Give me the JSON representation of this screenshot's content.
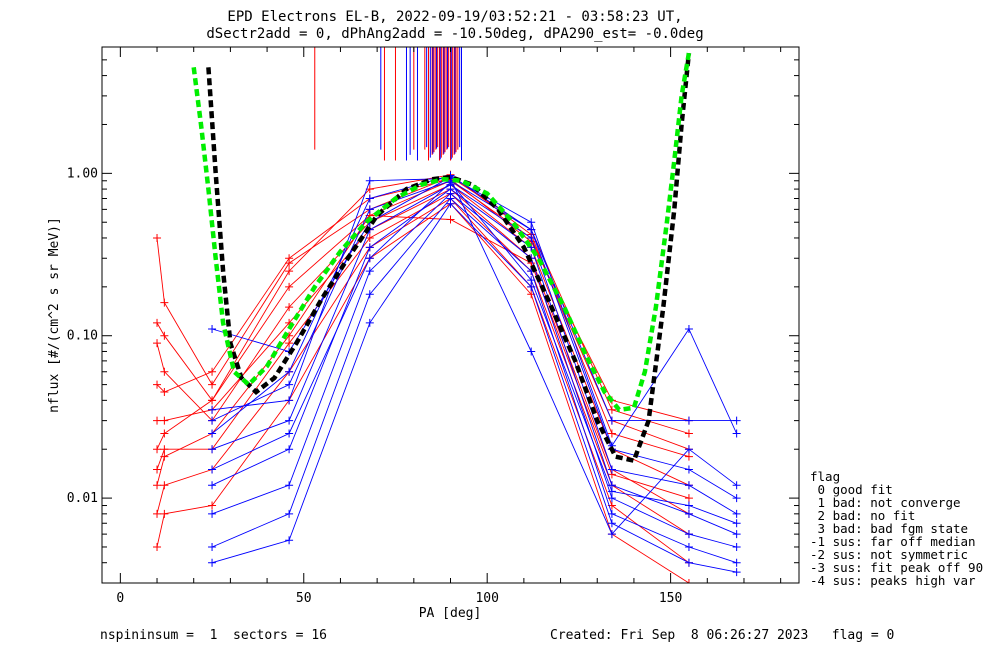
{
  "chart_data": {
    "type": "scatter",
    "title": "EPD Electrons EL-B, 2022-09-19/03:52:21 - 03:58:23 UT,",
    "subtitle": "dSectr2add = 0, dPhAng2add = -10.50deg, dPA290_est=  -0.0deg",
    "xlabel": "PA [deg]",
    "ylabel": "nflux [#/(cm^2 s sr MeV)]",
    "xlim": [
      -5,
      185
    ],
    "ylim": [
      0.003,
      6.0
    ],
    "y_scale": "log",
    "x_ticks": [
      "0",
      "50",
      "100",
      "150"
    ],
    "x_tick_values": [
      0,
      50,
      100,
      150
    ],
    "y_ticks": [
      "0.01",
      "0.10",
      "1.00"
    ],
    "y_tick_values": [
      0.01,
      0.1,
      1.0
    ],
    "series": [
      {
        "color": "#ff0000",
        "style": "red-spin-curves",
        "pa": [
          10,
          12,
          25,
          46,
          68,
          90,
          112,
          134,
          155
        ],
        "curves": [
          [
            0.4,
            0.16,
            0.05,
            0.28,
            0.6,
            0.95,
            0.45,
            0.035,
            0.025
          ],
          [
            0.12,
            0.1,
            0.04,
            0.2,
            0.55,
            0.9,
            0.4,
            0.03,
            0.02
          ],
          [
            0.09,
            0.06,
            0.03,
            0.15,
            0.5,
            0.85,
            0.35,
            0.02,
            0.012
          ],
          [
            0.03,
            0.03,
            0.035,
            0.12,
            0.45,
            0.8,
            0.3,
            0.015,
            0.008
          ],
          [
            0.015,
            0.02,
            0.02,
            0.09,
            0.4,
            0.75,
            0.25,
            0.012,
            0.006
          ],
          [
            0.008,
            0.012,
            0.015,
            0.06,
            0.35,
            0.7,
            0.2,
            0.009,
            0.004
          ],
          [
            0.005,
            0.008,
            0.009,
            0.04,
            0.3,
            0.65,
            0.18,
            0.006,
            0.003
          ],
          [
            0.02,
            0.025,
            0.04,
            0.25,
            0.8,
            0.98,
            0.42,
            0.025,
            0.018
          ],
          [
            0.05,
            0.045,
            0.06,
            0.3,
            0.7,
            0.92,
            0.38,
            0.04,
            0.03
          ],
          [
            0.012,
            0.018,
            0.025,
            0.1,
            0.55,
            0.52,
            0.28,
            0.014,
            0.01
          ]
        ]
      },
      {
        "color": "#0000ff",
        "style": "blue-spin-curves",
        "pa": [
          25,
          46,
          68,
          90,
          112,
          134,
          155,
          168
        ],
        "curves": [
          [
            0.11,
            0.08,
            0.5,
            0.95,
            0.5,
            0.021,
            0.11,
            0.025
          ],
          [
            0.03,
            0.05,
            0.6,
            0.9,
            0.45,
            0.02,
            0.015,
            0.01
          ],
          [
            0.02,
            0.03,
            0.45,
            0.85,
            0.4,
            0.015,
            0.012,
            0.008
          ],
          [
            0.012,
            0.02,
            0.35,
            0.8,
            0.35,
            0.012,
            0.008,
            0.006
          ],
          [
            0.008,
            0.012,
            0.25,
            0.75,
            0.3,
            0.01,
            0.006,
            0.005
          ],
          [
            0.005,
            0.008,
            0.18,
            0.7,
            0.25,
            0.008,
            0.005,
            0.004
          ],
          [
            0.004,
            0.0055,
            0.12,
            0.65,
            0.2,
            0.007,
            0.004,
            0.0035
          ],
          [
            0.025,
            0.06,
            0.7,
            0.97,
            0.45,
            0.03,
            0.03,
            0.03
          ],
          [
            0.035,
            0.04,
            0.9,
            0.93,
            0.08,
            0.006,
            0.02,
            0.012
          ],
          [
            0.015,
            0.025,
            0.3,
            0.88,
            0.22,
            0.011,
            0.009,
            0.007
          ]
        ]
      },
      {
        "color": "#000000",
        "style": "dashed",
        "x": [
          24,
          26,
          28,
          30,
          33,
          37,
          42,
          48,
          55,
          62,
          70,
          78,
          85,
          90,
          96,
          103,
          110,
          117,
          124,
          130,
          135,
          140,
          144,
          148,
          151,
          153,
          155
        ],
        "y": [
          4.5,
          1.0,
          0.25,
          0.09,
          0.055,
          0.045,
          0.055,
          0.09,
          0.17,
          0.3,
          0.55,
          0.8,
          0.92,
          0.95,
          0.85,
          0.6,
          0.35,
          0.16,
          0.07,
          0.03,
          0.018,
          0.017,
          0.03,
          0.15,
          0.6,
          2.0,
          5.5
        ]
      },
      {
        "color": "#00ee00",
        "style": "dashed",
        "x": [
          20,
          22,
          24,
          26,
          28,
          31,
          35,
          40,
          46,
          53,
          60,
          67,
          75,
          82,
          88,
          93,
          100,
          107,
          114,
          121,
          127,
          132,
          136,
          140,
          143,
          146,
          149,
          151,
          153,
          155
        ],
        "y": [
          4.5,
          2.0,
          0.8,
          0.3,
          0.12,
          0.06,
          0.05,
          0.065,
          0.11,
          0.2,
          0.33,
          0.5,
          0.7,
          0.85,
          0.92,
          0.9,
          0.75,
          0.5,
          0.3,
          0.15,
          0.075,
          0.045,
          0.035,
          0.036,
          0.06,
          0.15,
          0.5,
          1.2,
          3.0,
          5.5
        ]
      },
      {
        "color": "#ff0000",
        "style": "vertical-spikes",
        "x": [
          53,
          72,
          75,
          80,
          83,
          84,
          85,
          85.5,
          86,
          86.5,
          87,
          87.5,
          88,
          88.5,
          89,
          89.5,
          90,
          90.5,
          91,
          91.5,
          92
        ]
      },
      {
        "color": "#0000ff",
        "style": "vertical-spikes",
        "x": [
          71,
          78,
          79,
          81,
          83.5,
          84.5,
          85.2,
          86.2,
          87.2,
          88.2,
          89.2,
          90.2,
          91.2,
          92.5,
          93
        ]
      }
    ]
  },
  "footer": {
    "left": "nspininsum =  1  sectors = 16",
    "right": "Created: Fri Sep  8 06:26:27 2023   flag = 0"
  },
  "legend": {
    "title": "flag",
    "items": [
      " 0 good fit",
      " 1 bad: not converge",
      " 2 bad: no fit",
      " 3 bad: bad fgm state",
      "-1 sus: far off median",
      "-2 sus: not symmetric",
      "-3 sus: fit peak off 90",
      "-4 sus: peaks high var"
    ]
  }
}
